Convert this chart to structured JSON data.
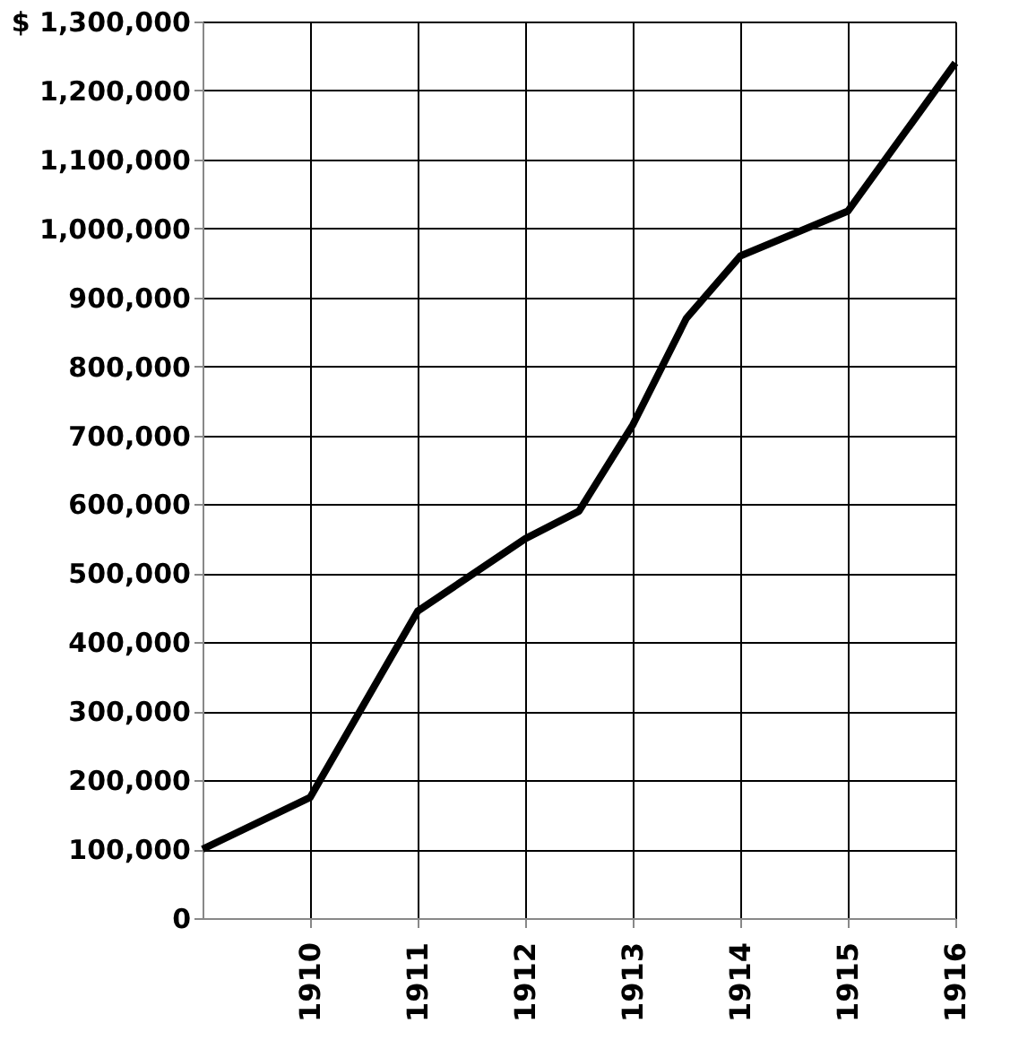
{
  "chart_data": {
    "type": "line",
    "x": [
      1909,
      1910,
      1911,
      1912,
      1912.5,
      1913,
      1913.5,
      1914,
      1915,
      1916
    ],
    "values": [
      100000,
      175000,
      445000,
      550000,
      590000,
      715000,
      870000,
      960000,
      1025000,
      1240000
    ],
    "color": "#000000",
    "xlim": [
      1909,
      1916
    ],
    "xticks": [
      1910,
      1911,
      1912,
      1913,
      1914,
      1915,
      1916
    ],
    "ylim": [
      0,
      1300000
    ],
    "yticks": [
      {
        "value": 0,
        "label": "0"
      },
      {
        "value": 100000,
        "label": "100,000"
      },
      {
        "value": 200000,
        "label": "200,000"
      },
      {
        "value": 300000,
        "label": "300,000"
      },
      {
        "value": 400000,
        "label": "400,000"
      },
      {
        "value": 500000,
        "label": "500,000"
      },
      {
        "value": 600000,
        "label": "600,000"
      },
      {
        "value": 700000,
        "label": "700,000"
      },
      {
        "value": 800000,
        "label": "800,000"
      },
      {
        "value": 900000,
        "label": "900,000"
      },
      {
        "value": 1000000,
        "label": "1,000,000"
      },
      {
        "value": 1100000,
        "label": "1,100,000"
      },
      {
        "value": 1200000,
        "label": "1,200,000"
      },
      {
        "value": 1300000,
        "label": "$ 1,300,000"
      }
    ],
    "grid": true,
    "line_style": "solid",
    "marker": "none"
  }
}
